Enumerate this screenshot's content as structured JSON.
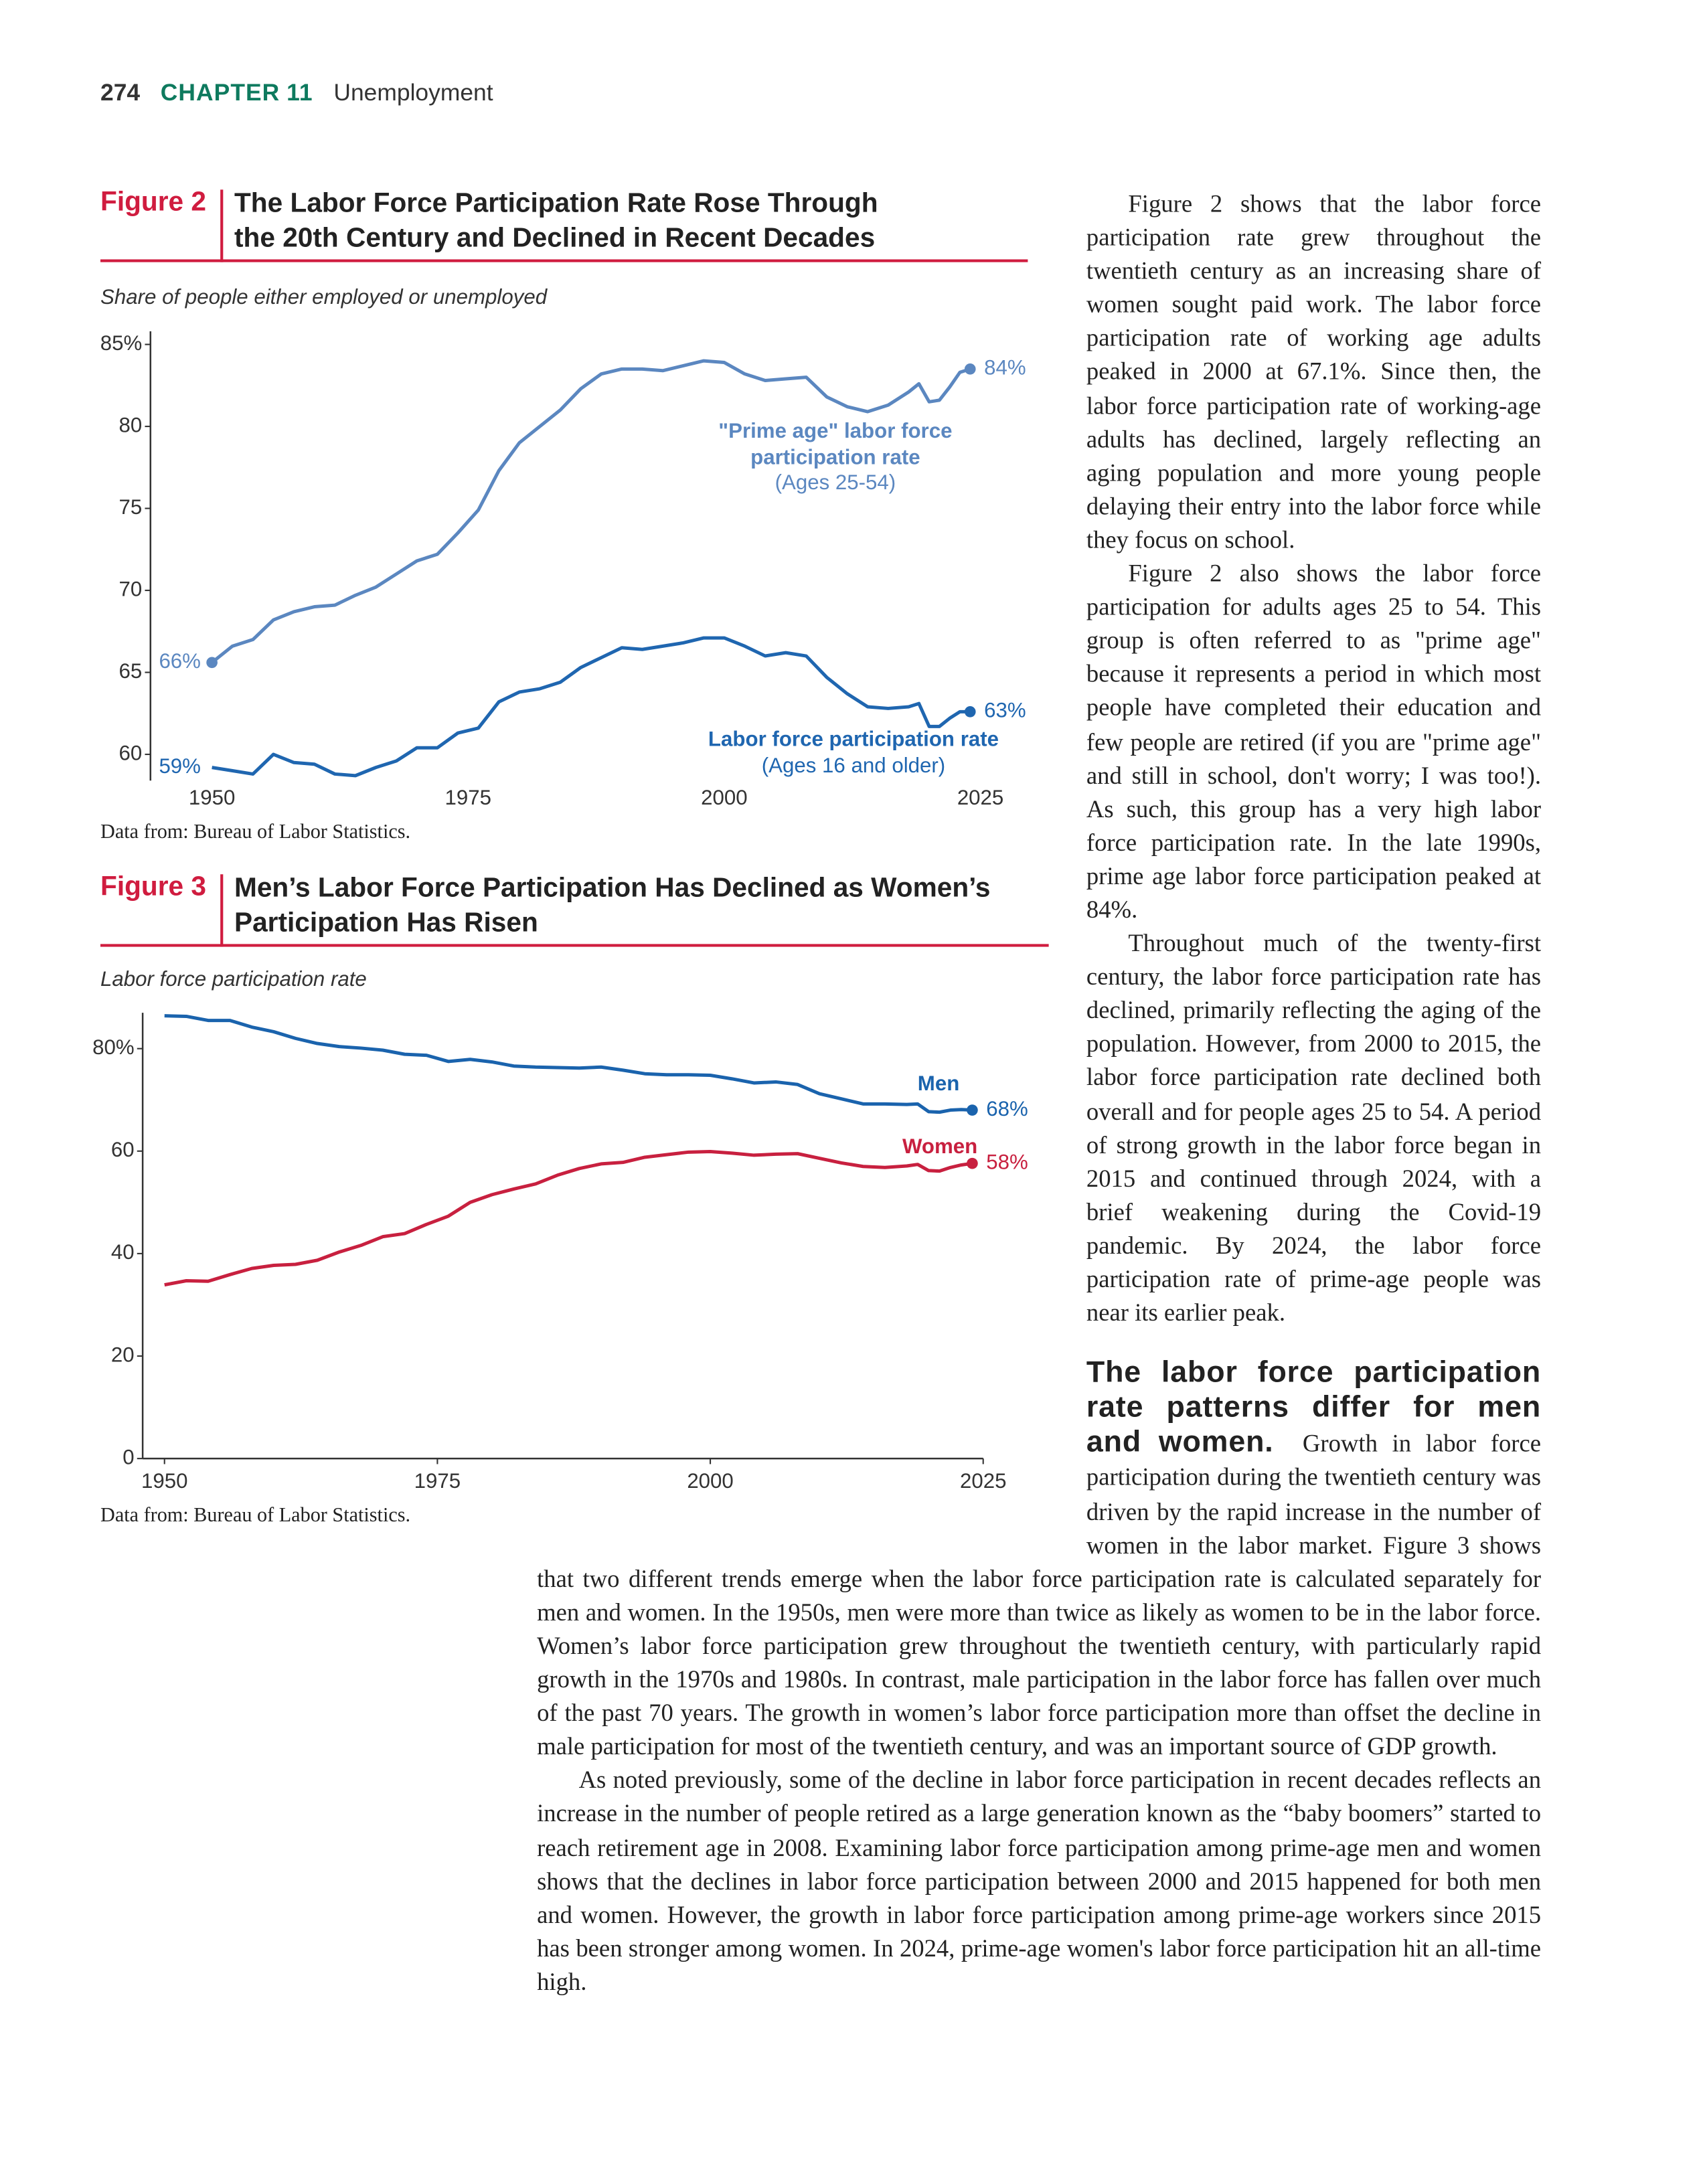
{
  "header": {
    "page": "274",
    "chapter": "CHAPTER",
    "chapter_number": "11",
    "chapter_title": "Unemployment"
  },
  "chart_data": [
    {
      "type": "line",
      "figure_label": "Figure 2",
      "title": "The Labor Force Participation Rate Rose Through the 20th Century and Declined in Recent Decades",
      "subtitle": "Share of people either employed or unemployed",
      "source": "Data from: Bureau of Labor Statistics.",
      "x": [
        1950,
        1952,
        1954,
        1956,
        1958,
        1960,
        1962,
        1964,
        1966,
        1968,
        1970,
        1972,
        1974,
        1976,
        1978,
        1980,
        1982,
        1984,
        1986,
        1988,
        1990,
        1992,
        1994,
        1996,
        1998,
        2000,
        2002,
        2004,
        2006,
        2008,
        2010,
        2012,
        2014,
        2016,
        2018,
        2019,
        2020,
        2021,
        2022,
        2023,
        2024
      ],
      "series": [
        {
          "name": "\"Prime age\" labor force participation rate",
          "note": "(Ages 25-54)",
          "color": "#5b87c0",
          "values": [
            65.6,
            66.6,
            67.0,
            68.2,
            68.7,
            69.0,
            69.1,
            69.7,
            70.2,
            71.0,
            71.8,
            72.2,
            73.5,
            74.9,
            77.3,
            79.0,
            80.0,
            81.0,
            82.3,
            83.2,
            83.5,
            83.5,
            83.4,
            83.7,
            84.0,
            83.9,
            83.2,
            82.8,
            82.9,
            83.0,
            81.8,
            81.2,
            80.9,
            81.3,
            82.1,
            82.6,
            81.5,
            81.6,
            82.4,
            83.3,
            83.5
          ],
          "value_labels": [
            "66%",
            null,
            null,
            null,
            null,
            null,
            null,
            null,
            null,
            null,
            null,
            null,
            null,
            null,
            null,
            null,
            null,
            null,
            null,
            null,
            null,
            null,
            null,
            null,
            null,
            null,
            null,
            null,
            null,
            null,
            null,
            null,
            null,
            null,
            null,
            null,
            null,
            null,
            null,
            null,
            "84%"
          ]
        },
        {
          "name": "Labor force participation rate",
          "note": "(Ages 16 and older)",
          "color": "#1f66b0",
          "values": [
            59.2,
            59.0,
            58.8,
            60.0,
            59.5,
            59.4,
            58.8,
            58.7,
            59.2,
            59.6,
            60.4,
            60.4,
            61.3,
            61.6,
            63.2,
            63.8,
            64.0,
            64.4,
            65.3,
            65.9,
            66.5,
            66.4,
            66.6,
            66.8,
            67.1,
            67.1,
            66.6,
            66.0,
            66.2,
            66.0,
            64.7,
            63.7,
            62.9,
            62.8,
            62.9,
            63.1,
            61.7,
            61.7,
            62.2,
            62.6,
            62.6
          ],
          "value_labels": [
            "59%",
            null,
            null,
            null,
            null,
            null,
            null,
            null,
            null,
            null,
            null,
            null,
            null,
            null,
            null,
            null,
            null,
            null,
            null,
            null,
            null,
            null,
            null,
            null,
            null,
            null,
            null,
            null,
            null,
            null,
            null,
            null,
            null,
            null,
            null,
            null,
            null,
            null,
            null,
            null,
            "63%"
          ]
        }
      ],
      "xlim": [
        1944,
        2025
      ],
      "xticks": [
        1950,
        1975,
        2000,
        2025
      ],
      "ylim": [
        58.4,
        85.8
      ],
      "yticks": [
        {
          "value": 85,
          "label": "85%"
        },
        80,
        75,
        70,
        65,
        60
      ]
    },
    {
      "type": "line",
      "figure_label": "Figure 3",
      "title": "Men’s Labor Force Participation Has Declined as Women’s Participation Has Risen",
      "subtitle": "Labor force participation rate",
      "source": "Data from: Bureau of Labor Statistics.",
      "x": [
        1950,
        1952,
        1954,
        1956,
        1958,
        1960,
        1962,
        1964,
        1966,
        1968,
        1970,
        1972,
        1974,
        1976,
        1978,
        1980,
        1982,
        1984,
        1986,
        1988,
        1990,
        1992,
        1994,
        1996,
        1998,
        2000,
        2002,
        2004,
        2006,
        2008,
        2010,
        2012,
        2014,
        2016,
        2018,
        2019,
        2020,
        2021,
        2022,
        2023,
        2024
      ],
      "series": [
        {
          "name": "Men",
          "color": "#1a63ad",
          "values": [
            86.4,
            86.3,
            85.5,
            85.5,
            84.2,
            83.3,
            82.0,
            81.0,
            80.4,
            80.1,
            79.7,
            78.9,
            78.7,
            77.5,
            77.9,
            77.4,
            76.6,
            76.4,
            76.3,
            76.2,
            76.4,
            75.8,
            75.1,
            74.9,
            74.9,
            74.8,
            74.1,
            73.3,
            73.5,
            73.0,
            71.2,
            70.2,
            69.2,
            69.2,
            69.1,
            69.2,
            67.7,
            67.6,
            68.0,
            68.1,
            68.0
          ],
          "value_labels": [
            null,
            null,
            null,
            null,
            null,
            null,
            null,
            null,
            null,
            null,
            null,
            null,
            null,
            null,
            null,
            null,
            null,
            null,
            null,
            null,
            null,
            null,
            null,
            null,
            null,
            null,
            null,
            null,
            null,
            null,
            null,
            null,
            null,
            null,
            null,
            null,
            null,
            null,
            null,
            null,
            "68%"
          ]
        },
        {
          "name": "Women",
          "color": "#c8203f",
          "values": [
            33.9,
            34.7,
            34.6,
            35.9,
            37.1,
            37.7,
            37.9,
            38.7,
            40.3,
            41.6,
            43.3,
            43.9,
            45.7,
            47.3,
            50.0,
            51.5,
            52.6,
            53.6,
            55.3,
            56.6,
            57.5,
            57.8,
            58.8,
            59.3,
            59.8,
            59.9,
            59.6,
            59.2,
            59.4,
            59.5,
            58.6,
            57.7,
            57.0,
            56.8,
            57.1,
            57.4,
            56.2,
            56.1,
            56.8,
            57.3,
            57.6
          ],
          "value_labels": [
            null,
            null,
            null,
            null,
            null,
            null,
            null,
            null,
            null,
            null,
            null,
            null,
            null,
            null,
            null,
            null,
            null,
            null,
            null,
            null,
            null,
            null,
            null,
            null,
            null,
            null,
            null,
            null,
            null,
            null,
            null,
            null,
            null,
            null,
            null,
            null,
            null,
            null,
            null,
            null,
            "58%"
          ]
        }
      ],
      "xlim": [
        1948,
        2025
      ],
      "xticks": [
        1950,
        1975,
        2000,
        2025
      ],
      "ylim": [
        0,
        87
      ],
      "yticks": [
        0,
        20,
        40,
        60,
        {
          "value": 80,
          "label": "80%"
        }
      ]
    }
  ],
  "body": {
    "paragraphs": [
      "Figure 2 shows that the labor force participation rate grew throughout the twentieth century as an increasing share of women sought paid work. The labor force participation rate of working age adults peaked in 2000 at 67.1%. Since then, the labor force participation rate of working-age adults has declined, largely reflecting an aging population and more young people delaying their entry into the labor force while they focus on school.",
      "Figure 2 also shows the labor force participation for adults ages 25 to 54. This group is often referred to as \"prime age\" because it represents a period in which most people have completed their education and few people are retired (if you are \"prime age\" and still in school, don't worry; I was too!). As such, this group has a very high labor force participation rate. In the late 1990s, prime age labor force participation peaked at 84%.",
      "Throughout much of the twenty-first century, the labor force participation rate has declined, primarily reflecting the aging of the population. However, from 2000 to 2015, the labor force participation rate declined both overall and for people ages 25 to 54. A period of strong growth in the labor force began in 2015 and continued through 2024, with a brief weakening during the Covid-19 pandemic. By 2024, the labor force participation rate of prime-age people was near its earlier peak."
    ],
    "heading": "The labor force participation rate patterns differ for men and women.",
    "heading_text": "Growth in labor force participation during the twentieth century was driven by the rapid increase in the number of women in the labor market. Figure 3 shows that two different trends emerge when the labor force participation rate is calculated separately for men and women. In the 1950s, men were more than twice as likely as women to be in the labor force. Women’s labor force participation grew throughout the twentieth century, with particularly rapid growth in the 1970s and 1980s. In contrast, male participation in the labor force has fallen over much of the past 70 years. The growth in women’s labor force participation more than offset the decline in male participation for most of the twentieth century, and was an important source of GDP growth.",
    "closing": "As noted previously, some of the decline in labor force participation in recent decades reflects an increase in the number of people retired as a large generation known as the “baby boomers” started to reach retirement age in 2008. Examining labor force participation among prime-age men and women shows that the declines in labor force participation between 2000 and 2015 happened for both men and women. However, the growth in labor force participation among prime-age workers since 2015 has been stronger among women. In 2024, prime-age women's labor force participation hit an all-time high."
  }
}
